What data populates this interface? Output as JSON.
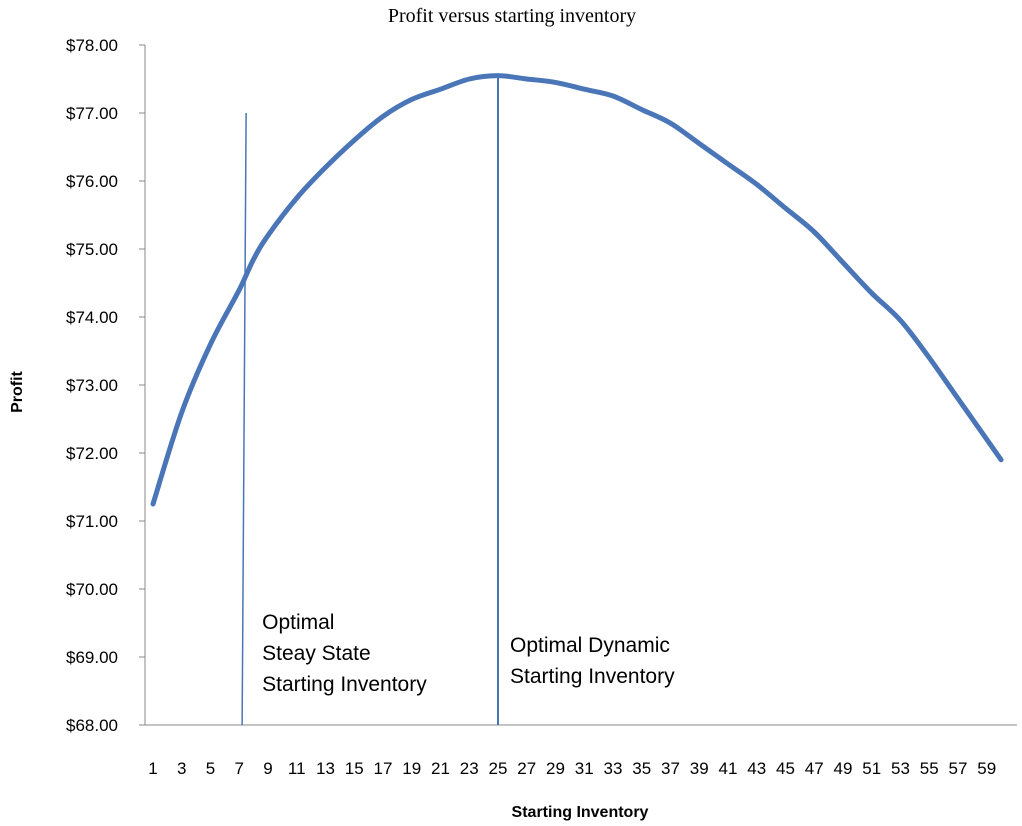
{
  "chart_data": {
    "type": "line",
    "title": "Profit versus starting inventory",
    "xlabel": "Starting Inventory",
    "ylabel": "Profit",
    "ylim": [
      68,
      78
    ],
    "y_ticks": [
      "$68.00",
      "$69.00",
      "$70.00",
      "$71.00",
      "$72.00",
      "$73.00",
      "$74.00",
      "$75.00",
      "$76.00",
      "$77.00",
      "$78.00"
    ],
    "x_ticks": [
      "1",
      "3",
      "5",
      "7",
      "9",
      "11",
      "13",
      "15",
      "17",
      "19",
      "21",
      "23",
      "25",
      "27",
      "29",
      "31",
      "33",
      "35",
      "37",
      "39",
      "41",
      "43",
      "45",
      "47",
      "49",
      "51",
      "53",
      "55",
      "57",
      "59"
    ],
    "x_range": [
      1,
      60
    ],
    "series": [
      {
        "color": "#4a76b8",
        "x": [
          1,
          3,
          5,
          7,
          8,
          9,
          11,
          13,
          15,
          17,
          19,
          21,
          23,
          25,
          27,
          29,
          31,
          33,
          35,
          37,
          39,
          41,
          43,
          45,
          47,
          49,
          51,
          53,
          55,
          57,
          59,
          60
        ],
        "y": [
          71.25,
          72.6,
          73.6,
          74.4,
          74.85,
          75.2,
          75.75,
          76.2,
          76.6,
          76.95,
          77.2,
          77.35,
          77.5,
          77.55,
          77.5,
          77.45,
          77.35,
          77.25,
          77.05,
          76.85,
          76.55,
          76.25,
          75.95,
          75.6,
          75.25,
          74.8,
          74.35,
          73.95,
          73.4,
          72.8,
          72.2,
          71.9
        ]
      }
    ],
    "vlines": [
      {
        "x": 7.2,
        "y_top": 77.0,
        "label_lines": [
          "Optimal",
          "Steay State",
          "Starting Inventory"
        ],
        "color": "#4a76b8"
      },
      {
        "x": 25,
        "y_top": 77.55,
        "label_lines": [
          "Optimal Dynamic",
          "Starting Inventory"
        ],
        "color": "#4a76b8"
      }
    ],
    "grid": false,
    "legend": "none"
  }
}
